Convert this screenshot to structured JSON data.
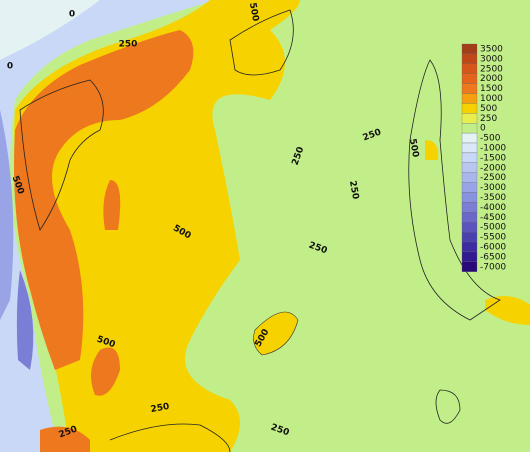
{
  "colorbar": [
    {
      "label": 3500,
      "color": "#a33c18"
    },
    {
      "label": 3000,
      "color": "#c04818"
    },
    {
      "label": 2500,
      "color": "#d6561a"
    },
    {
      "label": 2000,
      "color": "#e4641c"
    },
    {
      "label": 1500,
      "color": "#ee781e"
    },
    {
      "label": 1000,
      "color": "#f6a010"
    },
    {
      "label": 500,
      "color": "#f6d200"
    },
    {
      "label": 250,
      "color": "#e8ee50"
    },
    {
      "label": 0,
      "color": "#c2ee8a"
    },
    {
      "label": -500,
      "color": "#e4f2f4"
    },
    {
      "label": -1000,
      "color": "#d8e8f6"
    },
    {
      "label": -1500,
      "color": "#c8d8f6"
    },
    {
      "label": -2000,
      "color": "#b8c6f0"
    },
    {
      "label": -2500,
      "color": "#a8b6ec"
    },
    {
      "label": -3000,
      "color": "#98a4e6"
    },
    {
      "label": -3500,
      "color": "#8892de"
    },
    {
      "label": -4000,
      "color": "#7a7ed4"
    },
    {
      "label": -4500,
      "color": "#6a68c8"
    },
    {
      "label": -5000,
      "color": "#5a54bc"
    },
    {
      "label": -5500,
      "color": "#4a40ae"
    },
    {
      "label": -6000,
      "color": "#3c2ca0"
    },
    {
      "label": -6500,
      "color": "#321a90"
    },
    {
      "label": -7000,
      "color": "#280a78"
    }
  ],
  "contour_labels": [
    "0",
    "500",
    "250",
    "0",
    "250",
    "500",
    "250",
    "250",
    "500",
    "250",
    "500",
    "500",
    "500",
    "250",
    "250",
    "250"
  ]
}
